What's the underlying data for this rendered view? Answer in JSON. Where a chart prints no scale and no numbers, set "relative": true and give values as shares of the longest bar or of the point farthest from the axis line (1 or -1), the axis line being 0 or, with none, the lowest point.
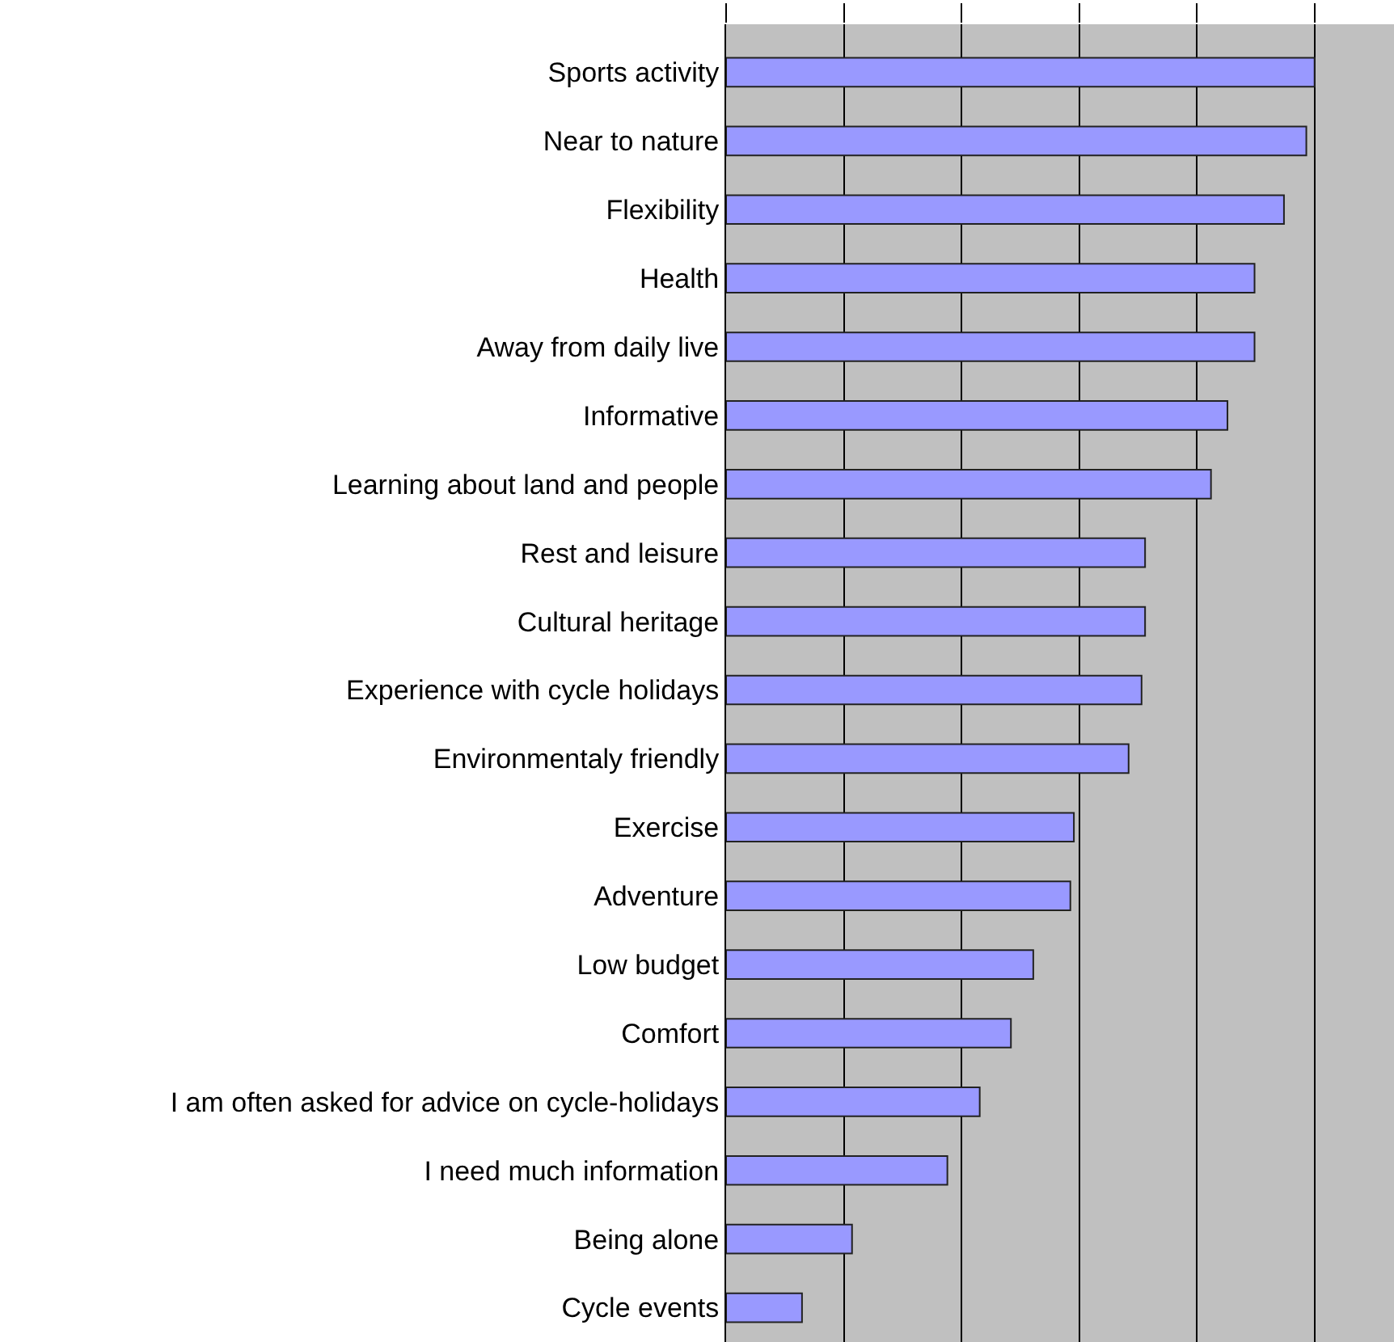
{
  "chart_data": {
    "type": "bar",
    "orientation": "horizontal",
    "relative": true,
    "grid": "x",
    "color": "#9999ff",
    "categories": [
      "Sports activity",
      "Near to nature",
      "Flexibility",
      "Health",
      "Away from daily live",
      "Informative",
      "Learning about land and people",
      "Rest and leisure",
      "Cultural heritage",
      "Experience with cycle holidays",
      "Environmentaly friendly",
      "Exercise",
      "Adventure",
      "Low budget",
      "Comfort",
      "I am often asked for advice on cycle-holidays",
      "I need much information",
      "Being alone",
      "Cycle events"
    ],
    "values": [
      1,
      0.986,
      0.948,
      0.898,
      0.898,
      0.852,
      0.824,
      0.712,
      0.712,
      0.706,
      0.684,
      0.591,
      0.585,
      0.522,
      0.484,
      0.431,
      0.376,
      0.214,
      0.129
    ]
  }
}
